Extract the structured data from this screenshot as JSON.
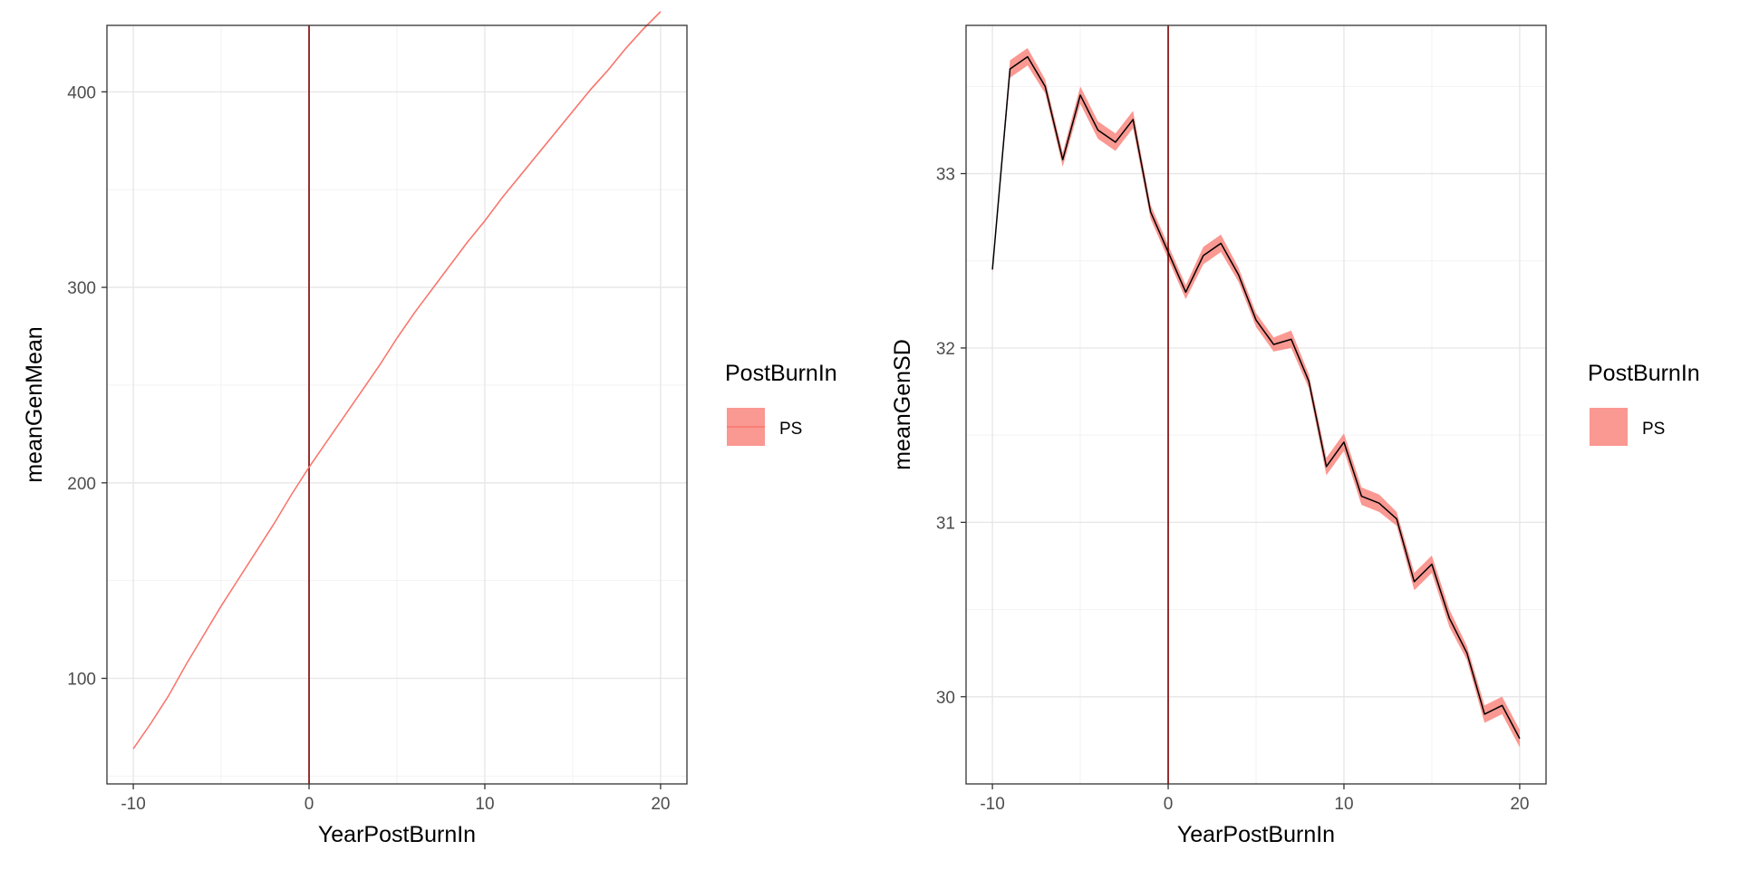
{
  "chart_data": [
    {
      "type": "line",
      "title": "",
      "xlabel": "YearPostBurnIn",
      "ylabel": "meanGenMean",
      "xlim": [
        -11.5,
        21.5
      ],
      "ylim": [
        46,
        434
      ],
      "xticks": [
        -10,
        0,
        10,
        20
      ],
      "xtick_labels": [
        "-10",
        "0",
        "10",
        "20"
      ],
      "yticks": [
        100,
        200,
        300,
        400
      ],
      "ytick_labels": [
        "100",
        "200",
        "300",
        "400"
      ],
      "grid": true,
      "vline_x": 0,
      "vline_color": "#7f0000",
      "line_color": "#f8766d",
      "ribbon_color": "#f8766d",
      "legend": {
        "title": "PostBurnIn",
        "entries": [
          "PS"
        ],
        "placement": "right"
      },
      "series": [
        {
          "name": "PS",
          "x": [
            -10,
            -9,
            -8,
            -7,
            -6,
            -5,
            -4,
            -3,
            -2,
            -1,
            0,
            1,
            2,
            3,
            4,
            5,
            6,
            7,
            8,
            9,
            10,
            11,
            12,
            13,
            14,
            15,
            16,
            17,
            18,
            19,
            20
          ],
          "values": [
            64,
            77,
            91,
            107,
            122,
            137,
            151,
            165,
            179,
            194,
            208,
            221,
            234,
            247,
            260,
            274,
            287,
            299,
            311,
            323,
            334,
            346,
            357,
            368,
            379,
            390,
            401,
            411,
            422,
            432,
            441
          ]
        }
      ]
    },
    {
      "type": "line",
      "title": "",
      "xlabel": "YearPostBurnIn",
      "ylabel": "meanGenSD",
      "xlim": [
        -11.5,
        21.5
      ],
      "ylim": [
        29.5,
        33.85
      ],
      "xticks": [
        -10,
        0,
        10,
        20
      ],
      "xtick_labels": [
        "-10",
        "0",
        "10",
        "20"
      ],
      "yticks": [
        30,
        31,
        32,
        33
      ],
      "ytick_labels": [
        "30",
        "31",
        "32",
        "33"
      ],
      "grid": true,
      "vline_x": 0,
      "vline_color": "#7f0000",
      "line_color": "#000000",
      "ribbon_color": "#f8766d",
      "legend": {
        "title": "PostBurnIn",
        "entries": [
          "PS"
        ],
        "placement": "right"
      },
      "series": [
        {
          "name": "PS",
          "x": [
            -10,
            -9,
            -8,
            -7,
            -6,
            -5,
            -4,
            -3,
            -2,
            -1,
            0,
            1,
            2,
            3,
            4,
            5,
            6,
            7,
            8,
            9,
            10,
            11,
            12,
            13,
            14,
            15,
            16,
            17,
            18,
            19,
            20
          ],
          "values": [
            32.45,
            33.6,
            33.67,
            33.5,
            33.08,
            33.45,
            33.25,
            33.18,
            33.31,
            32.78,
            32.55,
            32.32,
            32.53,
            32.6,
            32.42,
            32.16,
            32.02,
            32.05,
            31.81,
            31.32,
            31.46,
            31.15,
            31.11,
            31.02,
            30.66,
            30.76,
            30.45,
            30.25,
            29.9,
            29.95,
            29.76
          ],
          "ribbon_half_width": [
            0.02,
            0.05,
            0.05,
            0.04,
            0.04,
            0.05,
            0.05,
            0.05,
            0.05,
            0.04,
            0.04,
            0.04,
            0.05,
            0.05,
            0.04,
            0.04,
            0.04,
            0.05,
            0.04,
            0.05,
            0.05,
            0.05,
            0.05,
            0.04,
            0.05,
            0.05,
            0.05,
            0.04,
            0.05,
            0.05,
            0.05
          ]
        }
      ]
    }
  ]
}
